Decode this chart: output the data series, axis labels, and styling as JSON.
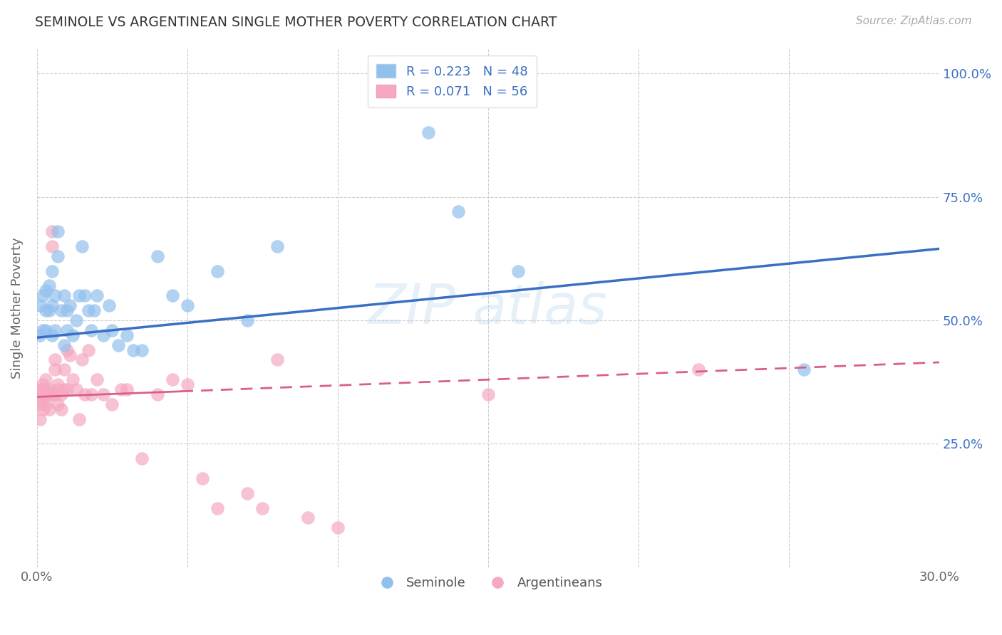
{
  "title": "SEMINOLE VS ARGENTINEAN SINGLE MOTHER POVERTY CORRELATION CHART",
  "source": "Source: ZipAtlas.com",
  "ylabel": "Single Mother Poverty",
  "xlim": [
    0.0,
    0.3
  ],
  "ylim": [
    0.0,
    1.05
  ],
  "x_ticks": [
    0.0,
    0.05,
    0.1,
    0.15,
    0.2,
    0.25,
    0.3
  ],
  "x_tick_labels": [
    "0.0%",
    "",
    "",
    "",
    "",
    "",
    "30.0%"
  ],
  "y_ticks_right": [
    0.25,
    0.5,
    0.75,
    1.0
  ],
  "y_tick_labels_right": [
    "25.0%",
    "50.0%",
    "75.0%",
    "100.0%"
  ],
  "blue_R": 0.223,
  "blue_N": 48,
  "pink_R": 0.071,
  "pink_N": 56,
  "seminole_color": "#92C0ED",
  "argentinean_color": "#F5A8C0",
  "trend_blue": "#3A6FC4",
  "trend_pink": "#D95F8A",
  "background_color": "#ffffff",
  "grid_color": "#cccccc",
  "legend_text_color": "#3A6FC4",
  "title_color": "#333333",
  "seminole_x": [
    0.001,
    0.001,
    0.002,
    0.002,
    0.003,
    0.003,
    0.003,
    0.004,
    0.004,
    0.005,
    0.005,
    0.005,
    0.006,
    0.006,
    0.007,
    0.007,
    0.008,
    0.009,
    0.009,
    0.01,
    0.01,
    0.011,
    0.012,
    0.013,
    0.014,
    0.015,
    0.016,
    0.017,
    0.018,
    0.019,
    0.02,
    0.022,
    0.024,
    0.025,
    0.027,
    0.03,
    0.032,
    0.035,
    0.04,
    0.045,
    0.05,
    0.06,
    0.07,
    0.08,
    0.13,
    0.14,
    0.16,
    0.255
  ],
  "seminole_y": [
    0.53,
    0.47,
    0.55,
    0.48,
    0.52,
    0.48,
    0.56,
    0.52,
    0.57,
    0.6,
    0.53,
    0.47,
    0.55,
    0.48,
    0.68,
    0.63,
    0.52,
    0.55,
    0.45,
    0.52,
    0.48,
    0.53,
    0.47,
    0.5,
    0.55,
    0.65,
    0.55,
    0.52,
    0.48,
    0.52,
    0.55,
    0.47,
    0.53,
    0.48,
    0.45,
    0.47,
    0.44,
    0.44,
    0.63,
    0.55,
    0.53,
    0.6,
    0.5,
    0.65,
    0.88,
    0.72,
    0.6,
    0.4
  ],
  "argentinean_x": [
    0.001,
    0.001,
    0.001,
    0.001,
    0.002,
    0.002,
    0.002,
    0.002,
    0.003,
    0.003,
    0.003,
    0.003,
    0.004,
    0.004,
    0.004,
    0.005,
    0.005,
    0.005,
    0.006,
    0.006,
    0.006,
    0.007,
    0.007,
    0.007,
    0.008,
    0.008,
    0.009,
    0.009,
    0.01,
    0.01,
    0.011,
    0.012,
    0.013,
    0.014,
    0.015,
    0.016,
    0.017,
    0.018,
    0.02,
    0.022,
    0.025,
    0.028,
    0.03,
    0.035,
    0.04,
    0.045,
    0.05,
    0.055,
    0.06,
    0.07,
    0.075,
    0.08,
    0.09,
    0.1,
    0.15,
    0.22
  ],
  "argentinean_y": [
    0.36,
    0.33,
    0.35,
    0.3,
    0.36,
    0.32,
    0.34,
    0.37,
    0.33,
    0.36,
    0.38,
    0.35,
    0.36,
    0.32,
    0.35,
    0.35,
    0.65,
    0.68,
    0.4,
    0.35,
    0.42,
    0.36,
    0.33,
    0.37,
    0.32,
    0.35,
    0.36,
    0.4,
    0.36,
    0.44,
    0.43,
    0.38,
    0.36,
    0.3,
    0.42,
    0.35,
    0.44,
    0.35,
    0.38,
    0.35,
    0.33,
    0.36,
    0.36,
    0.22,
    0.35,
    0.38,
    0.37,
    0.18,
    0.12,
    0.15,
    0.12,
    0.42,
    0.1,
    0.08,
    0.35,
    0.4
  ],
  "trend_blue_x0": 0.0,
  "trend_blue_y0": 0.465,
  "trend_blue_x1": 0.3,
  "trend_blue_y1": 0.645,
  "trend_pink_x0": 0.0,
  "trend_pink_y0": 0.345,
  "trend_pink_x1": 0.3,
  "trend_pink_y1": 0.415,
  "trend_pink_solid_end": 0.048,
  "watermark": "ZIP atlas"
}
